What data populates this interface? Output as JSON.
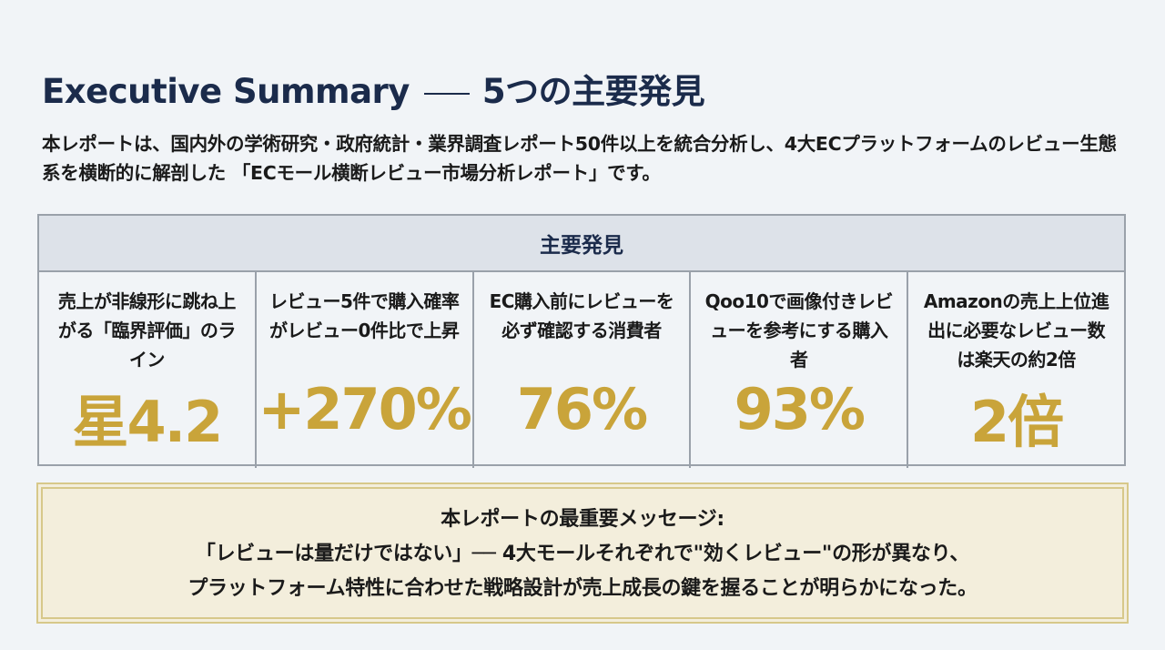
{
  "header": {
    "title": "Executive Summary",
    "subtitle": "5つの主要発見"
  },
  "intro": "本レポートは、国内外の学術研究・政府統計・業界調査レポート50件以上を統合分析し、4大ECプラットフォームのレビュー生態系を横断的に解剖した 「ECモール横断レビュー市場分析レポート」です。",
  "findings": {
    "heading": "主要発見",
    "items": [
      {
        "label": "売上が非線形に跳ね上がる「臨界評価」のライン",
        "value": "星4.2"
      },
      {
        "label": "レビュー5件で購入確率がレビュー0件比で上昇",
        "value": "+270%"
      },
      {
        "label": "EC購入前にレビューを必ず確認する消費者",
        "value": "76%"
      },
      {
        "label": "Qoo10で画像付きレビューを参考にする購入者",
        "value": "93%"
      },
      {
        "label": "Amazonの売上上位進出に必要なレビュー数は楽天の約2倍",
        "value": "2倍"
      }
    ]
  },
  "message": {
    "heading": "本レポートの最重要メッセージ:",
    "line1": "「レビューは量だけではない」── 4大モールそれぞれで\"効くレビュー\"の形が異なり、",
    "line2": "プラットフォーム特性に合わせた戦略設計が売上成長の鍵を握ることが明らかになった。"
  },
  "colors": {
    "navy": "#1b2b4b",
    "gold": "#c9a43a",
    "message_bg": "#f3eedc"
  }
}
